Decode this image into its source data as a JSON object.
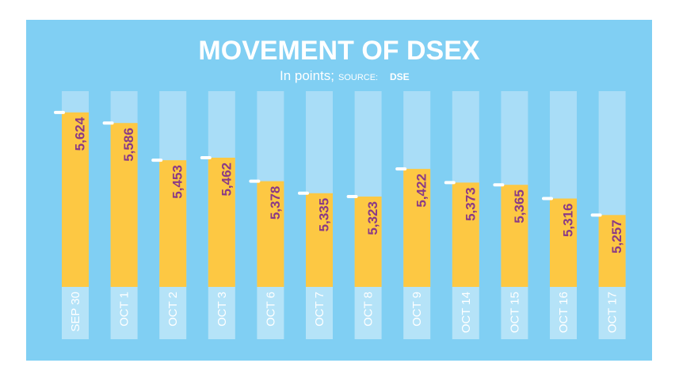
{
  "chart_data": {
    "type": "bar",
    "title": "MOVEMENT OF DSEX",
    "subtitle": "In points;",
    "source_label": "SOURCE:",
    "source": "DSE",
    "categories": [
      "SEP 30",
      "OCT 1",
      "OCT 2",
      "OCT 3",
      "OCT 6",
      "OCT 7",
      "OCT 8",
      "OCT 9",
      "OCT 14",
      "OCT 15",
      "OCT 16",
      "OCT 17"
    ],
    "values": [
      5624,
      5586,
      5453,
      5462,
      5378,
      5335,
      5323,
      5422,
      5373,
      5365,
      5316,
      5257
    ],
    "value_labels": [
      "5,624",
      "5,586",
      "5,453",
      "5,462",
      "5,378",
      "5,335",
      "5,323",
      "5,422",
      "5,373",
      "5,365",
      "5,316",
      "5,257"
    ],
    "color": "#fdc843",
    "ylim": [
      5000,
      5700
    ]
  }
}
